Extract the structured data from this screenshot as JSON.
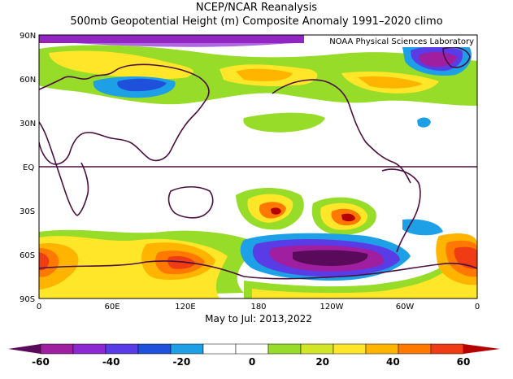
{
  "title_line1": "NCEP/NCAR Reanalysis",
  "title_line2": "500mb Geopotential Height (m) Composite Anomaly 1991–2020 climo",
  "credit": "NOAA Physical Sciences Laboratory",
  "subtitle": "May to Jul: 2013,2022",
  "lat_labels": [
    "90N",
    "60N",
    "30N",
    "EQ",
    "30S",
    "60S",
    "90S"
  ],
  "lon_labels": [
    "0",
    "60E",
    "120E",
    "180",
    "120W",
    "60W",
    "0"
  ],
  "colorbar": {
    "ticks": [
      "-60",
      "-40",
      "-20",
      "0",
      "20",
      "40",
      "60"
    ],
    "colors": [
      "#5a0a5a",
      "#a01ea0",
      "#8c28d2",
      "#5a3ce6",
      "#1e50dc",
      "#1ea0e6",
      "#ffffff",
      "#ffffff",
      "#96dc28",
      "#d2e628",
      "#ffe628",
      "#ffb400",
      "#ff7800",
      "#f03c14",
      "#b40000"
    ]
  }
}
